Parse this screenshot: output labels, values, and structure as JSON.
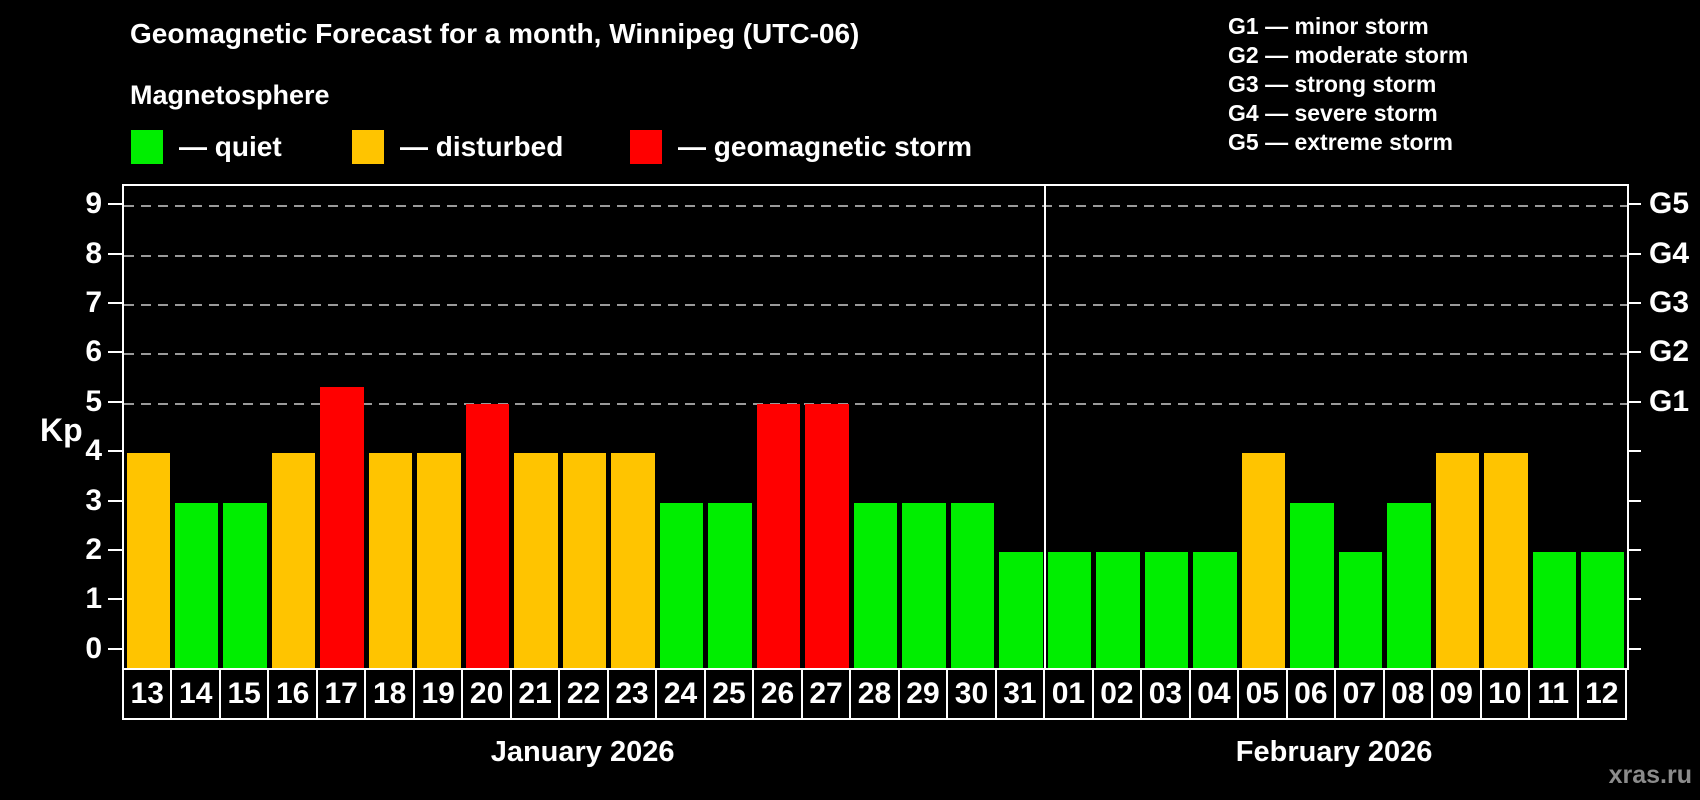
{
  "title": "Geomagnetic Forecast for a month, Winnipeg (UTC-06)",
  "subtitle": "Magnetosphere",
  "legend": {
    "items": [
      {
        "state": "quiet",
        "label": "— quiet",
        "color": "#00ee00"
      },
      {
        "state": "disturbed",
        "label": "— disturbed",
        "color": "#ffc400"
      },
      {
        "state": "storm",
        "label": "— geomagnetic storm",
        "color": "#ff0000"
      }
    ]
  },
  "g_legend": [
    "G1 — minor storm",
    "G2 — moderate storm",
    "G3 — strong storm",
    "G4 — severe storm",
    "G5 — extreme storm"
  ],
  "watermark": "xras.ru",
  "colors": {
    "quiet": "#00ee00",
    "disturbed": "#ffc400",
    "storm": "#ff0000",
    "gridline": "#9a9a9a",
    "axis": "#ffffff",
    "background": "#000000"
  },
  "chart_data": {
    "type": "bar",
    "title": "Geomagnetic Forecast for a month, Winnipeg (UTC-06)",
    "ylabel": "Kp",
    "ylim": [
      -0.39,
      9.41
    ],
    "y_ticks": [
      0,
      1,
      2,
      3,
      4,
      5,
      6,
      7,
      8,
      9
    ],
    "dashed_gridlines_at_kp": [
      5,
      6,
      7,
      8,
      9
    ],
    "right_axis_labels": [
      {
        "label": "G1",
        "kp": 5
      },
      {
        "label": "G2",
        "kp": 6
      },
      {
        "label": "G3",
        "kp": 7
      },
      {
        "label": "G4",
        "kp": 8
      },
      {
        "label": "G5",
        "kp": 9
      }
    ],
    "legend_position": "top-left",
    "grid": "dashed horizontal at Kp 5-9 only",
    "months": [
      {
        "label": "January 2026",
        "days": [
          {
            "day": "13",
            "kp": 4,
            "state": "disturbed"
          },
          {
            "day": "14",
            "kp": 3,
            "state": "quiet"
          },
          {
            "day": "15",
            "kp": 3,
            "state": "quiet"
          },
          {
            "day": "16",
            "kp": 4,
            "state": "disturbed"
          },
          {
            "day": "17",
            "kp": 5.33,
            "state": "storm"
          },
          {
            "day": "18",
            "kp": 4,
            "state": "disturbed"
          },
          {
            "day": "19",
            "kp": 4,
            "state": "disturbed"
          },
          {
            "day": "20",
            "kp": 5,
            "state": "storm"
          },
          {
            "day": "21",
            "kp": 4,
            "state": "disturbed"
          },
          {
            "day": "22",
            "kp": 4,
            "state": "disturbed"
          },
          {
            "day": "23",
            "kp": 4,
            "state": "disturbed"
          },
          {
            "day": "24",
            "kp": 3,
            "state": "quiet"
          },
          {
            "day": "25",
            "kp": 3,
            "state": "quiet"
          },
          {
            "day": "26",
            "kp": 5,
            "state": "storm"
          },
          {
            "day": "27",
            "kp": 5,
            "state": "storm"
          },
          {
            "day": "28",
            "kp": 3,
            "state": "quiet"
          },
          {
            "day": "29",
            "kp": 3,
            "state": "quiet"
          },
          {
            "day": "30",
            "kp": 3,
            "state": "quiet"
          },
          {
            "day": "31",
            "kp": 2,
            "state": "quiet"
          }
        ]
      },
      {
        "label": "February 2026",
        "days": [
          {
            "day": "01",
            "kp": 2,
            "state": "quiet"
          },
          {
            "day": "02",
            "kp": 2,
            "state": "quiet"
          },
          {
            "day": "03",
            "kp": 2,
            "state": "quiet"
          },
          {
            "day": "04",
            "kp": 2,
            "state": "quiet"
          },
          {
            "day": "05",
            "kp": 4,
            "state": "disturbed"
          },
          {
            "day": "06",
            "kp": 3,
            "state": "quiet"
          },
          {
            "day": "07",
            "kp": 2,
            "state": "quiet"
          },
          {
            "day": "08",
            "kp": 3,
            "state": "quiet"
          },
          {
            "day": "09",
            "kp": 4,
            "state": "disturbed"
          },
          {
            "day": "10",
            "kp": 4,
            "state": "disturbed"
          },
          {
            "day": "11",
            "kp": 2,
            "state": "quiet"
          },
          {
            "day": "12",
            "kp": 2,
            "state": "quiet"
          }
        ]
      }
    ]
  }
}
